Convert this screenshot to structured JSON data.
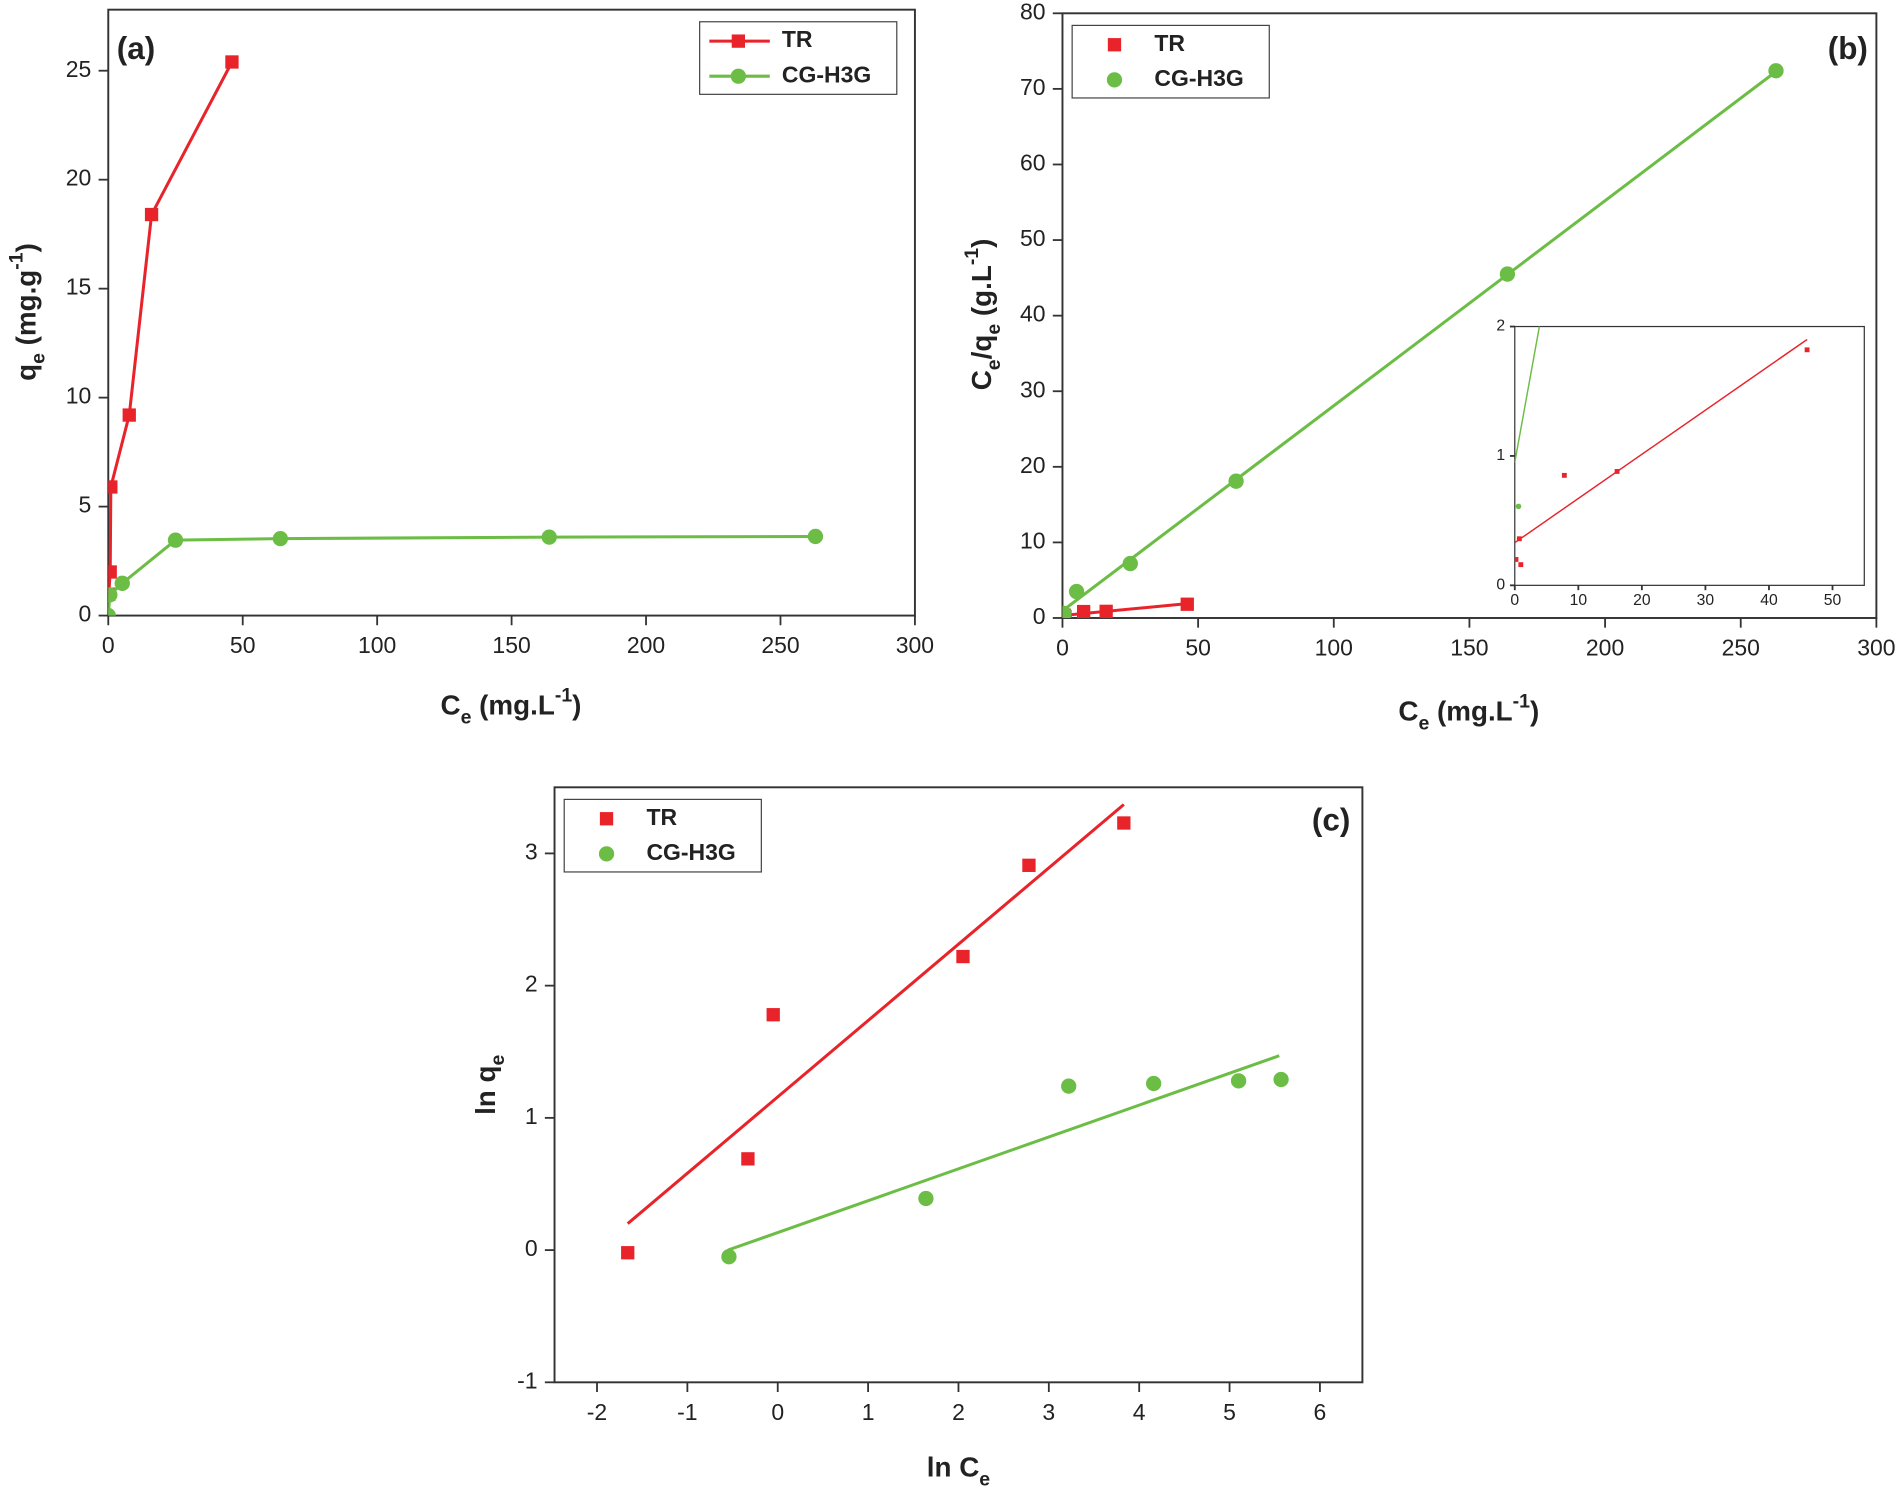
{
  "chart_data": [
    {
      "type": "line",
      "panel": "(a)",
      "legend": "upper right",
      "legend_lines": true,
      "xlabel": [
        {
          "text": "C"
        },
        {
          "text": "e",
          "shift": "sub"
        },
        {
          "text": " (mg.L"
        },
        {
          "text": "-1",
          "shift": "super"
        },
        {
          "text": ")"
        }
      ],
      "ylabel": [
        {
          "text": "q"
        },
        {
          "text": "e",
          "shift": "sub"
        },
        {
          "text": " (mg.g"
        },
        {
          "text": "-1",
          "shift": "super"
        },
        {
          "text": ")"
        }
      ],
      "xlim": [
        0,
        300
      ],
      "ylim": [
        0,
        27.8
      ],
      "xticks": [
        0,
        50,
        100,
        150,
        200,
        250,
        300
      ],
      "yticks": [
        0,
        5,
        10,
        15,
        20,
        25
      ],
      "series": [
        {
          "name": "TR",
          "color": "#e8232a",
          "marker": "square",
          "x": [
            0.19,
            0.72,
            0.95,
            7.8,
            16.1,
            46
          ],
          "values": [
            0.98,
            2.0,
            5.9,
            9.2,
            18.4,
            25.4
          ]
        },
        {
          "name": "CG-H3G",
          "color": "#6cbd45",
          "marker": "circle",
          "x": [
            0,
            0.58,
            5.2,
            25,
            64,
            164,
            263
          ],
          "values": [
            0,
            0.95,
            1.48,
            3.46,
            3.53,
            3.6,
            3.63
          ]
        }
      ]
    },
    {
      "type": "scatter",
      "panel": "(b)",
      "legend": "upper left",
      "legend_lines": false,
      "xlabel": [
        {
          "text": "C"
        },
        {
          "text": "e",
          "shift": "sub"
        },
        {
          "text": " (mg.L"
        },
        {
          "text": "-1",
          "shift": "super"
        },
        {
          "text": ")"
        }
      ],
      "ylabel": [
        {
          "text": "C"
        },
        {
          "text": "e",
          "shift": "sub"
        },
        {
          "text": "/q"
        },
        {
          "text": "e",
          "shift": "sub"
        },
        {
          "text": " (g.L"
        },
        {
          "text": "-1",
          "shift": "super"
        },
        {
          "text": ")"
        }
      ],
      "xlim": [
        0,
        300
      ],
      "ylim": [
        0,
        80
      ],
      "xticks": [
        0,
        50,
        100,
        150,
        200,
        250,
        300
      ],
      "yticks": [
        0,
        10,
        20,
        30,
        40,
        50,
        60,
        70,
        80
      ],
      "series": [
        {
          "name": "TR",
          "color": "#e8232a",
          "marker": "square",
          "x": [
            0.19,
            0.72,
            0.95,
            7.8,
            16.1,
            46
          ],
          "values": [
            0.2,
            0.36,
            0.16,
            0.85,
            0.88,
            1.82
          ],
          "fit_x": [
            0,
            46
          ],
          "fit_values": [
            0.33,
            1.9
          ]
        },
        {
          "name": "CG-H3G",
          "color": "#6cbd45",
          "marker": "circle",
          "x": [
            0.58,
            5.2,
            25,
            64,
            164,
            263
          ],
          "values": [
            0.61,
            3.5,
            7.2,
            18.1,
            45.5,
            72.4
          ],
          "fit_x": [
            0,
            263
          ],
          "fit_values": [
            0.95,
            72.3
          ]
        }
      ],
      "inset": {
        "xlim": [
          0,
          55
        ],
        "ylim": [
          0,
          2
        ],
        "xticks": [
          0,
          10,
          20,
          30,
          40,
          50
        ],
        "yticks": [
          0,
          1,
          2
        ]
      }
    },
    {
      "type": "scatter",
      "panel": "(c)",
      "legend": "upper left",
      "legend_lines": false,
      "xlabel": [
        {
          "text": "ln C"
        },
        {
          "text": "e",
          "shift": "sub"
        }
      ],
      "ylabel": [
        {
          "text": "ln q"
        },
        {
          "text": "e",
          "shift": "sub"
        }
      ],
      "xlim": [
        -2.47,
        6.47
      ],
      "ylim": [
        -1,
        3.5
      ],
      "xticks": [
        -2,
        -1,
        0,
        1,
        2,
        3,
        4,
        5,
        6
      ],
      "yticks": [
        -1,
        0,
        1,
        2,
        3
      ],
      "series": [
        {
          "name": "TR",
          "color": "#e8232a",
          "marker": "square",
          "x": [
            -1.66,
            -0.33,
            -0.05,
            2.05,
            2.78,
            3.83
          ],
          "values": [
            -0.02,
            0.69,
            1.78,
            2.22,
            2.91,
            3.23
          ],
          "fit_x": [
            -1.66,
            3.83
          ],
          "fit_values": [
            0.2,
            3.37
          ]
        },
        {
          "name": "CG-H3G",
          "color": "#6cbd45",
          "marker": "circle",
          "x": [
            -0.54,
            1.64,
            3.22,
            4.16,
            5.1,
            5.57
          ],
          "values": [
            -0.05,
            0.39,
            1.24,
            1.26,
            1.28,
            1.29
          ],
          "fit_x": [
            -0.55,
            5.55
          ],
          "fit_values": [
            0,
            1.47
          ]
        }
      ]
    }
  ]
}
